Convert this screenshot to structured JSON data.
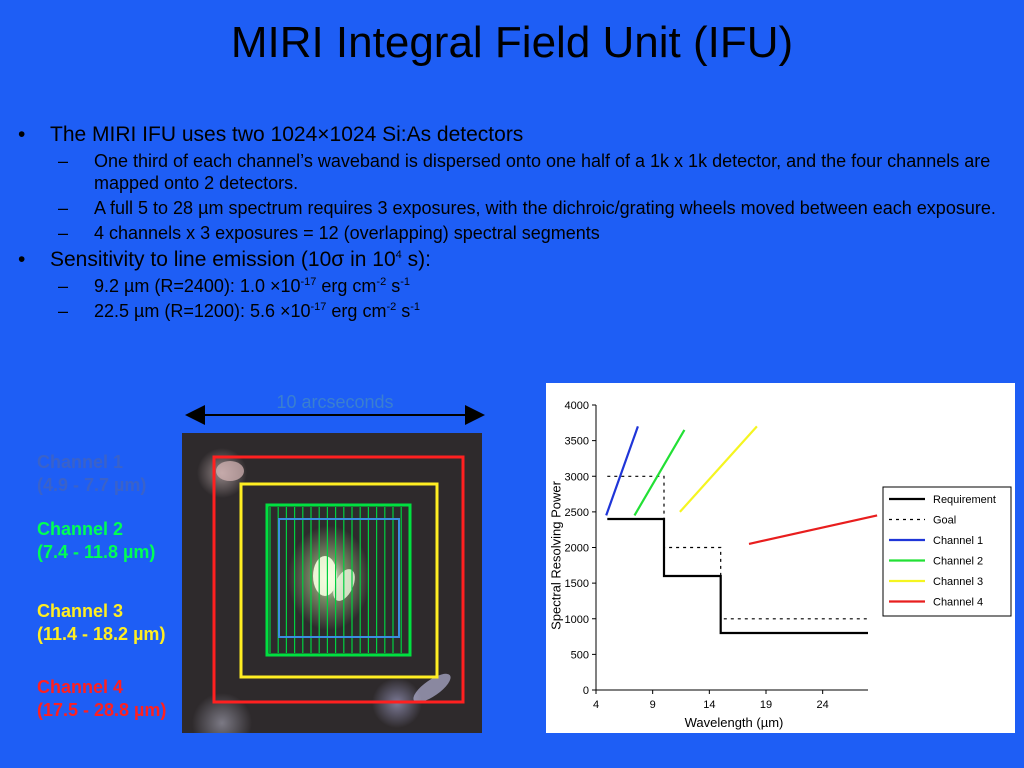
{
  "slide": {
    "title": "MIRI Integral Field Unit (IFU)",
    "bullets": [
      {
        "text": "The MIRI IFU uses two 1024×1024 Si:As detectors"
      },
      {
        "text": "One third of each channel’s waveband is dispersed onto one half of a 1k x 1k detector, and the four channels are mapped onto 2 detectors."
      },
      {
        "text": "A full 5 to 28 µm spectrum requires 3 exposures, with the dichroic/grating wheels moved between each exposure."
      },
      {
        "text": "4 channels x 3 exposures = 12 (overlapping) spectral segments"
      },
      {
        "pre": "Sensitivity to line emission (10σ in 10",
        "sup1": "4",
        "post": " s):"
      },
      {
        "pre": "9.2 µm (R=2400): 1.0 ×10",
        "sup1": "-17",
        "mid": " erg cm",
        "sup2": "-2",
        "mid2": " s",
        "sup3": "-1"
      },
      {
        "pre": "22.5 µm (R=1200): 5.6 ×10",
        "sup1": "-17",
        "mid": " erg cm",
        "sup2": "-2",
        "mid2": " s",
        "sup3": "-1"
      }
    ],
    "bullet_marks": {
      "level1": "•",
      "level2": "–"
    }
  },
  "image": {
    "scale_label": "10 arcseconds",
    "channels": [
      {
        "line1": "Channel 1",
        "line2": "(4.9 - 7.7 µm)",
        "color": "#3a62c9"
      },
      {
        "line1": "Channel 2",
        "line2": "(7.4 - 11.8 µm)",
        "color": "#00ff55"
      },
      {
        "line1": "Channel 3",
        "line2": "(11.4 - 18.2 µm)",
        "color": "#ffee22"
      },
      {
        "line1": "Channel 4",
        "line2": "(17.5 - 28.8 µm)",
        "color": "#ff2020"
      }
    ]
  },
  "chart_data": {
    "type": "line",
    "xlabel": "Wavelength (µm)",
    "ylabel": "Spectral Resolving Power",
    "xlim": [
      4,
      28
    ],
    "ylim": [
      0,
      4000
    ],
    "xticks": [
      4,
      9,
      14,
      19,
      24
    ],
    "yticks": [
      0,
      500,
      1000,
      1500,
      2000,
      2500,
      3000,
      3500,
      4000
    ],
    "legend_position": "right",
    "series": [
      {
        "name": "Requirement",
        "color": "#000000",
        "dash": "solid",
        "width": 2.2,
        "x": [
          5,
          10,
          10,
          15,
          15,
          28
        ],
        "y": [
          2400,
          2400,
          1600,
          1600,
          800,
          800
        ]
      },
      {
        "name": "Goal",
        "color": "#000000",
        "dash": "dotted",
        "width": 1.2,
        "x": [
          5,
          10,
          10,
          15,
          15,
          28
        ],
        "y": [
          3000,
          3000,
          2000,
          2000,
          1000,
          1000
        ]
      },
      {
        "name": "Channel 1",
        "color": "#1f35d8",
        "dash": "solid",
        "width": 2.2,
        "x": [
          4.9,
          7.7
        ],
        "y": [
          2450,
          3700
        ]
      },
      {
        "name": "Channel 2",
        "color": "#22e035",
        "dash": "solid",
        "width": 2.2,
        "x": [
          7.4,
          11.8
        ],
        "y": [
          2450,
          3650
        ]
      },
      {
        "name": "Channel 3",
        "color": "#f5f520",
        "dash": "solid",
        "width": 2.2,
        "x": [
          11.4,
          18.2
        ],
        "y": [
          2500,
          3700
        ]
      },
      {
        "name": "Channel 4",
        "color": "#e81e1e",
        "dash": "solid",
        "width": 2.2,
        "x": [
          17.5,
          28.8
        ],
        "y": [
          2050,
          2450
        ]
      }
    ]
  }
}
